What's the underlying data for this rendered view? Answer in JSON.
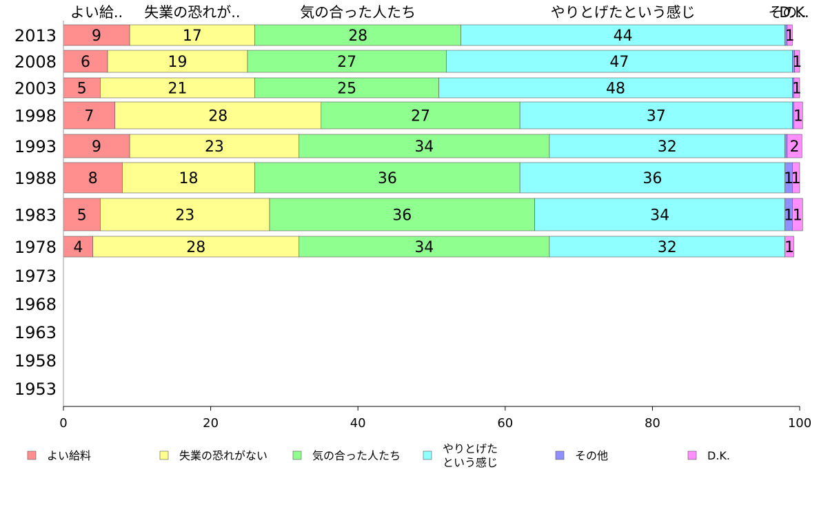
{
  "chart_data": {
    "type": "bar",
    "orientation": "horizontal",
    "stacked": true,
    "categories": [
      "2013",
      "2008",
      "2003",
      "1998",
      "1993",
      "1988",
      "1983",
      "1978",
      "1973",
      "1968",
      "1963",
      "1958",
      "1953"
    ],
    "series": [
      {
        "name": "よい給料",
        "short": "よい給..",
        "color": "#ff8f8f",
        "values": [
          9,
          6,
          5,
          7,
          9,
          8,
          5,
          4,
          null,
          null,
          null,
          null,
          null
        ]
      },
      {
        "name": "失業の恐れがない",
        "short": "失業の恐れが..",
        "color": "#ffff8f",
        "values": [
          17,
          19,
          21,
          28,
          23,
          18,
          23,
          28,
          null,
          null,
          null,
          null,
          null
        ]
      },
      {
        "name": "気の合った人たち",
        "short": "気の合った人たち",
        "color": "#8fff8f",
        "values": [
          28,
          27,
          25,
          27,
          34,
          36,
          36,
          34,
          null,
          null,
          null,
          null,
          null
        ]
      },
      {
        "name": "やりとげたという感じ",
        "name_lines": [
          "やりとげた",
          "という感じ"
        ],
        "short": "やりとげたという感じ",
        "color": "#8fffff",
        "values": [
          44,
          47,
          48,
          37,
          32,
          36,
          34,
          32,
          null,
          null,
          null,
          null,
          null
        ]
      },
      {
        "name": "その他",
        "short": "その..",
        "color": "#8f8fff",
        "values": [
          0.3,
          0.3,
          0.2,
          0.2,
          0.3,
          1,
          1,
          0,
          null,
          null,
          null,
          null,
          null
        ],
        "labels": [
          "",
          "",
          "",
          "",
          "",
          "1",
          "1",
          "",
          "",
          "",
          "",
          "",
          ""
        ]
      },
      {
        "name": "D.K.",
        "short": "D.K.",
        "color": "#ff8fff",
        "values": [
          0.7,
          0.7,
          0.8,
          1.2,
          2,
          1,
          1.4,
          1.2,
          null,
          null,
          null,
          null,
          null
        ],
        "labels": [
          "1",
          "1",
          "1",
          "1",
          "2",
          "1",
          "1",
          "1",
          "",
          "",
          "",
          "",
          ""
        ]
      }
    ],
    "xlim": [
      0,
      100
    ],
    "xticks": [
      0,
      20,
      40,
      60,
      80,
      100
    ],
    "xlabel": "",
    "ylabel": "",
    "grid": false,
    "legend": "bottom"
  }
}
